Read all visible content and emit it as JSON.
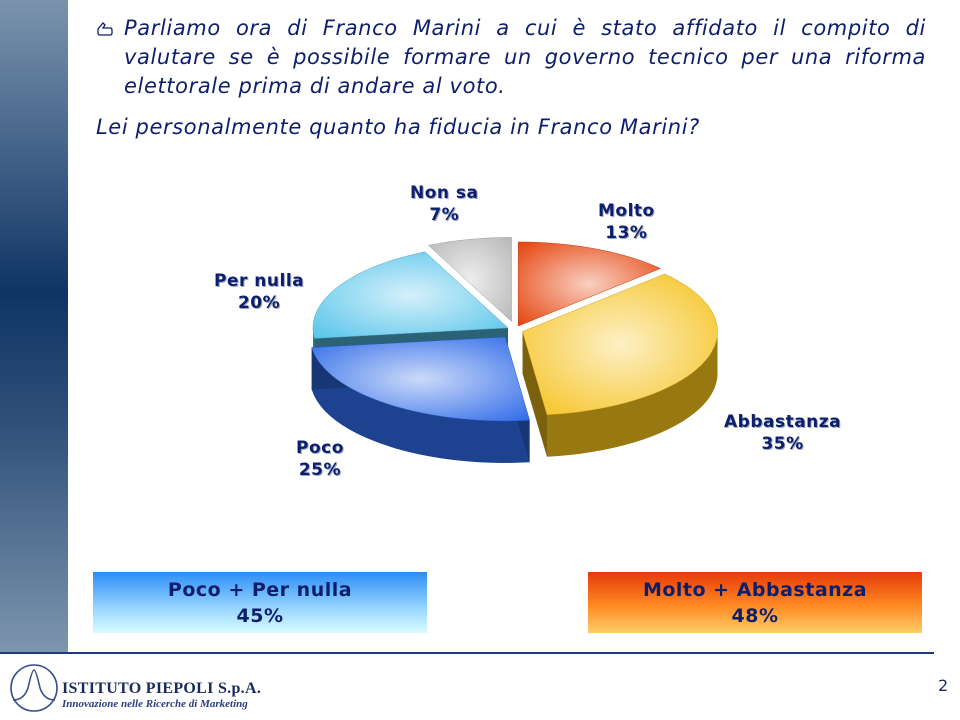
{
  "intro": {
    "text": "Parliamo ora di Franco Marini a cui è stato affidato il compito di valutare se è possibile formare un governo tecnico per una riforma elettorale prima di andare al voto."
  },
  "question": "Lei personalmente quanto ha fiducia in Franco Marini?",
  "chart_data": {
    "type": "pie",
    "title": "",
    "slices": [
      {
        "label": "Molto",
        "value": 13,
        "display": "13%",
        "color": "#e5420b"
      },
      {
        "label": "Abbastanza",
        "value": 35,
        "display": "35%",
        "color": "#f5c11c"
      },
      {
        "label": "Poco",
        "value": 25,
        "display": "25%",
        "color": "#2f6be8"
      },
      {
        "label": "Per nulla",
        "value": 20,
        "display": "20%",
        "color": "#56c4ea"
      },
      {
        "label": "Non sa",
        "value": 7,
        "display": "7%",
        "color": "#b8b8b8"
      }
    ],
    "exploded": [
      "Poco",
      "Non sa"
    ],
    "legend": "none"
  },
  "summary": {
    "negative": {
      "label": "Poco + Per nulla",
      "value": "45%"
    },
    "positive": {
      "label": "Molto + Abbastanza",
      "value": "48%"
    }
  },
  "footer": {
    "company": "ISTITUTO PIEPOLI S.p.A.",
    "tagline": "Innovazione nelle Ricerche di Marketing",
    "page_number": "2"
  }
}
